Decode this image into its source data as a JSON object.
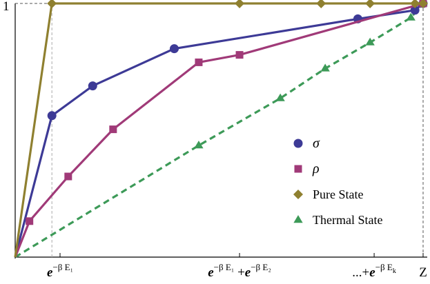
{
  "chart_data": {
    "type": "line",
    "title": "",
    "xlabel": "",
    "ylabel": "",
    "x_tick_labels": [
      {
        "x": 0.11,
        "base": "e",
        "exponent": "−β E₁"
      },
      {
        "x": 0.55,
        "base": "e",
        "exponent": "−β E₁",
        "plus": " +",
        "base2": "e",
        "exponent2": "−β E₂"
      },
      {
        "x": 0.88,
        "prefix": "...+",
        "base": "e",
        "exponent": "−β E",
        "exponent_sub": "k"
      },
      {
        "x": 1.0,
        "label": "Z"
      }
    ],
    "y_tick_labels": [
      {
        "y": 1.0,
        "label": "1"
      }
    ],
    "xlim": [
      0,
      1.0
    ],
    "ylim": [
      0,
      1.0
    ],
    "grid": false,
    "series": [
      {
        "name": "σ",
        "color": "#3d3a96",
        "marker": "circle",
        "dash": "solid",
        "x": [
          0.0,
          0.09,
          0.19,
          0.39,
          0.84,
          0.98,
          1.0
        ],
        "y": [
          0.0,
          0.57,
          0.69,
          0.84,
          0.96,
          0.995,
          1.0
        ]
      },
      {
        "name": "ρ",
        "color": "#a03a78",
        "marker": "square",
        "dash": "solid",
        "x": [
          0.0,
          0.035,
          0.13,
          0.24,
          0.45,
          0.55,
          1.0
        ],
        "y": [
          0.0,
          0.145,
          0.325,
          0.515,
          0.785,
          0.815,
          1.0
        ]
      },
      {
        "name": "Pure State",
        "color": "#8f8030",
        "marker": "diamond",
        "dash": "solid",
        "x": [
          0.0,
          0.09,
          0.55,
          0.75,
          0.87,
          0.98,
          1.0
        ],
        "y": [
          0.0,
          1.0,
          1.0,
          1.0,
          1.0,
          1.0,
          1.0
        ]
      },
      {
        "name": "Thermal State",
        "color": "#3d9a58",
        "marker": "triangle",
        "dash": "dashed",
        "x": [
          0.0,
          0.45,
          0.65,
          0.76,
          0.87,
          0.97,
          1.0
        ],
        "y": [
          0.0,
          0.45,
          0.64,
          0.76,
          0.865,
          0.965,
          1.0
        ]
      }
    ],
    "legend": {
      "placement": "right",
      "entries": [
        "σ",
        "ρ",
        "Pure State",
        "Thermal State"
      ]
    },
    "reference_lines": [
      {
        "orientation": "vertical",
        "x": 0.09,
        "color": "#aaaaaa",
        "dash": "dashed"
      },
      {
        "orientation": "vertical",
        "x": 1.0,
        "color": "#555555",
        "dash": "dashed"
      },
      {
        "orientation": "horizontal",
        "y": 1.0,
        "color": "#555555",
        "dash": "dashed"
      }
    ]
  }
}
